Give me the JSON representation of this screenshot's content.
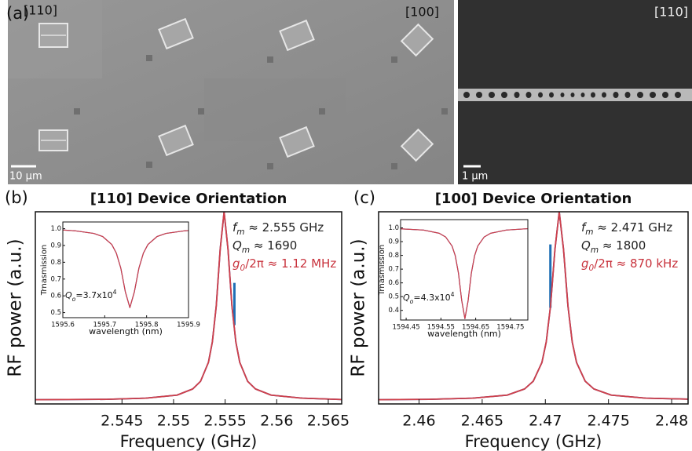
{
  "panel_a": {
    "label": "(a)",
    "left_tag_1": "[110]",
    "left_tag_2": "[100]",
    "left_scale": "10 μm",
    "right_tag": "[110]",
    "right_scale": "1 μm"
  },
  "chart_data": [
    {
      "type": "line",
      "label": "(b)",
      "title": "[110] Device Orientation",
      "xlabel": "Frequency (GHz)",
      "ylabel": "RF power (a.u.)",
      "xlim": [
        2.5366,
        2.5663
      ],
      "ylim": [
        0,
        1
      ],
      "xticks": [
        2.545,
        2.55,
        2.555,
        2.56,
        2.565
      ],
      "annotations": [
        {
          "parts": [
            "f",
            "m",
            " ≈ 2.555 GHz"
          ],
          "color": "#222222"
        },
        {
          "parts": [
            "Q",
            "m",
            " ≈ 1690"
          ],
          "color": "#222222"
        },
        {
          "parts": [
            "g",
            "0",
            "/2π ≈ 1.12 MHz"
          ],
          "color": "#c8323c"
        }
      ],
      "series": [
        {
          "color": "#2b3f9e",
          "x": [
            2.5366,
            2.5435,
            2.5473,
            2.55034,
            2.55186,
            2.55262,
            2.55338,
            2.55376,
            2.55414,
            2.55452,
            2.5549,
            2.55528,
            2.55566,
            2.55604,
            2.55642,
            2.55718,
            2.55794,
            2.55946,
            2.5625,
            2.5663
          ],
          "values": [
            0.022,
            0.024,
            0.03,
            0.046,
            0.078,
            0.118,
            0.216,
            0.322,
            0.51,
            0.804,
            1,
            0.804,
            0.51,
            0.322,
            0.216,
            0.118,
            0.078,
            0.046,
            0.03,
            0.023
          ]
        },
        {
          "color": "#1f6fb5",
          "x": [
            2.5559,
            2.5559
          ],
          "values": [
            0.41,
            0.63
          ]
        },
        {
          "color": "#d0404a",
          "x": [
            2.5366,
            2.5435,
            2.5473,
            2.55034,
            2.55186,
            2.55262,
            2.55338,
            2.55376,
            2.55414,
            2.55452,
            2.5549,
            2.55528,
            2.55566,
            2.55604,
            2.55642,
            2.55718,
            2.55794,
            2.55946,
            2.5625,
            2.5663
          ],
          "values": [
            0.022,
            0.024,
            0.03,
            0.046,
            0.078,
            0.118,
            0.216,
            0.322,
            0.51,
            0.804,
            1,
            0.804,
            0.51,
            0.322,
            0.216,
            0.118,
            0.078,
            0.046,
            0.03,
            0.023
          ]
        }
      ],
      "inset": {
        "type": "line",
        "xlabel": "wavelength (nm)",
        "ylabel": "Trnasmission",
        "xlim": [
          1595.6,
          1595.9
        ],
        "ylim": [
          0.47,
          1.04
        ],
        "xticks": [
          1595.6,
          1595.7,
          1595.8,
          1595.9
        ],
        "yticks": [
          0.5,
          0.6,
          0.7,
          0.8,
          0.9,
          {
            "value": 1,
            "label": "1.0"
          }
        ],
        "annotations": [
          {
            "parts": [
              "Q",
              "o",
              "=3.7x10",
              "4"
            ],
            "color": "#111111"
          }
        ],
        "series": [
          {
            "color": "#2b3f9e",
            "x": [
              1595.6,
              1595.62,
              1595.63,
              1595.6736,
              1595.6952,
              1595.7168,
              1595.7276,
              1595.7384,
              1595.7492,
              1595.76,
              1595.7708,
              1595.7816,
              1595.7924,
              1595.8032,
              1595.8248,
              1595.8464,
              1595.89,
              1595.9
            ],
            "values": [
              0.992,
              0.989,
              0.987,
              0.972,
              0.953,
              0.906,
              0.855,
              0.765,
              0.624,
              0.53,
              0.624,
              0.765,
              0.855,
              0.906,
              0.953,
              0.972,
              0.987,
              0.989
            ]
          },
          {
            "color": "#d0404a",
            "x": [
              1595.6,
              1595.62,
              1595.63,
              1595.6736,
              1595.6952,
              1595.7168,
              1595.7276,
              1595.7384,
              1595.7492,
              1595.76,
              1595.7708,
              1595.7816,
              1595.7924,
              1595.8032,
              1595.8248,
              1595.8464,
              1595.89,
              1595.9
            ],
            "values": [
              0.992,
              0.989,
              0.987,
              0.972,
              0.953,
              0.906,
              0.855,
              0.765,
              0.624,
              0.53,
              0.624,
              0.765,
              0.855,
              0.906,
              0.953,
              0.972,
              0.987,
              0.989
            ]
          }
        ]
      }
    },
    {
      "type": "line",
      "label": "(c)",
      "title": "[100] Device Orientation",
      "xlabel": "Frequency (GHz)",
      "ylabel": "RF power (a.u.)",
      "xlim": [
        2.4568,
        2.4813
      ],
      "ylim": [
        0,
        1
      ],
      "xticks": [
        2.46,
        2.465,
        2.47,
        2.475,
        2.48
      ],
      "annotations": [
        {
          "parts": [
            "f",
            "m",
            " ≈ 2.471 GHz"
          ],
          "color": "#222222"
        },
        {
          "parts": [
            "Q",
            "m",
            " ≈ 1800"
          ],
          "color": "#222222"
        },
        {
          "parts": [
            "g",
            "0",
            "/2π ≈ 870 kHz"
          ],
          "color": "#c8323c"
        }
      ],
      "series": [
        {
          "color": "#2b3f9e",
          "x": [
            2.4568,
            2.4608,
            2.46424,
            2.46698,
            2.46836,
            2.46904,
            2.46973,
            2.47007,
            2.47041,
            2.47076,
            2.4711,
            2.47144,
            2.47179,
            2.47213,
            2.47247,
            2.47316,
            2.47384,
            2.47522,
            2.47796,
            2.4813
          ],
          "values": [
            0.022,
            0.024,
            0.03,
            0.046,
            0.078,
            0.118,
            0.216,
            0.322,
            0.51,
            0.804,
            1,
            0.804,
            0.51,
            0.322,
            0.216,
            0.118,
            0.078,
            0.046,
            0.03,
            0.025
          ]
        },
        {
          "color": "#1f6fb5",
          "x": [
            2.4704,
            2.4704
          ],
          "values": [
            0.5,
            0.83
          ]
        },
        {
          "color": "#d0404a",
          "x": [
            2.4568,
            2.4608,
            2.46424,
            2.46698,
            2.46836,
            2.46904,
            2.46973,
            2.47007,
            2.47041,
            2.47076,
            2.4711,
            2.47144,
            2.47179,
            2.47213,
            2.47247,
            2.47316,
            2.47384,
            2.47522,
            2.47796,
            2.4813
          ],
          "values": [
            0.022,
            0.024,
            0.03,
            0.046,
            0.078,
            0.118,
            0.216,
            0.322,
            0.51,
            0.804,
            1,
            0.804,
            0.51,
            0.322,
            0.216,
            0.118,
            0.078,
            0.046,
            0.03,
            0.025
          ]
        }
      ],
      "inset": {
        "type": "line",
        "xlabel": "wavelength (nm)",
        "ylabel": "Trnasmission",
        "xlim": [
          1594.434,
          1594.8
        ],
        "ylim": [
          0.33,
          1.06
        ],
        "xticks": [
          1594.45,
          1594.55,
          1594.65,
          1594.75
        ],
        "yticks": [
          0.4,
          0.5,
          0.6,
          0.7,
          0.8,
          0.9,
          {
            "value": 1,
            "label": "1.0"
          }
        ],
        "annotations": [
          {
            "parts": [
              "Q",
              "o",
              "=4.3x10",
              "4"
            ],
            "color": "#111111"
          }
        ],
        "series": [
          {
            "color": "#2b3f9e",
            "x": [
              1594.434,
              1594.5,
              1594.545,
              1594.5635,
              1594.582,
              1594.5913,
              1594.6005,
              1594.6098,
              1594.619,
              1594.6283,
              1594.6375,
              1594.6468,
              1594.656,
              1594.6745,
              1594.693,
              1594.738,
              1594.8
            ],
            "values": [
              0.993,
              0.984,
              0.961,
              0.934,
              0.868,
              0.797,
              0.67,
              0.472,
              0.34,
              0.472,
              0.67,
              0.797,
              0.868,
              0.934,
              0.961,
              0.984,
              0.994
            ]
          },
          {
            "color": "#d0404a",
            "x": [
              1594.434,
              1594.5,
              1594.545,
              1594.5635,
              1594.582,
              1594.5913,
              1594.6005,
              1594.6098,
              1594.619,
              1594.6283,
              1594.6375,
              1594.6468,
              1594.656,
              1594.6745,
              1594.693,
              1594.738,
              1594.8
            ],
            "values": [
              0.993,
              0.984,
              0.961,
              0.934,
              0.868,
              0.797,
              0.67,
              0.472,
              0.34,
              0.472,
              0.67,
              0.797,
              0.868,
              0.934,
              0.961,
              0.984,
              0.994
            ]
          }
        ]
      }
    }
  ]
}
